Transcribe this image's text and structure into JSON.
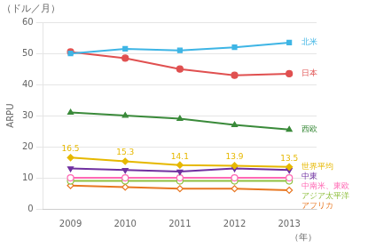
{
  "chart_data": {
    "type": "line",
    "title": "（ドル／月）",
    "ylabel": "ARPU",
    "xlabel": "（年）",
    "categories": [
      "2009",
      "2010",
      "2011",
      "2012",
      "2013"
    ],
    "series": [
      {
        "name": "北米",
        "color": "#3eb5e5",
        "marker": "square",
        "values": [
          50.0,
          51.5,
          51.0,
          52.0,
          53.5
        ]
      },
      {
        "name": "日本",
        "color": "#e05050",
        "marker": "circle",
        "values": [
          50.5,
          48.5,
          45.0,
          43.0,
          43.5
        ]
      },
      {
        "name": "西欧",
        "color": "#3a8a3a",
        "marker": "triangle",
        "values": [
          31.0,
          30.0,
          29.0,
          27.0,
          25.5
        ]
      },
      {
        "name": "世界平均",
        "color": "#e6b800",
        "marker": "diamond",
        "data_labels": true,
        "values": [
          16.5,
          15.3,
          14.1,
          13.9,
          13.5
        ]
      },
      {
        "name": "中東",
        "color": "#7030a0",
        "marker": "triangle-down",
        "values": [
          13.0,
          12.5,
          12.0,
          13.0,
          12.5
        ]
      },
      {
        "name": "中南米、東欧",
        "color": "#ff69b4",
        "marker": "circle-open",
        "values": [
          10.0,
          10.0,
          10.0,
          10.0,
          10.0
        ]
      },
      {
        "name": "アジア太平洋",
        "color": "#90c040",
        "marker": "circle-open",
        "values": [
          9.0,
          9.0,
          9.0,
          9.0,
          9.0
        ]
      },
      {
        "name": "アフリカ",
        "color": "#e87722",
        "marker": "diamond-open",
        "values": [
          7.5,
          7.0,
          6.5,
          6.5,
          6.0
        ]
      }
    ],
    "ylim": [
      0,
      60
    ],
    "yticks": [
      0,
      10,
      20,
      30,
      40,
      50,
      60
    ],
    "grid": true
  }
}
